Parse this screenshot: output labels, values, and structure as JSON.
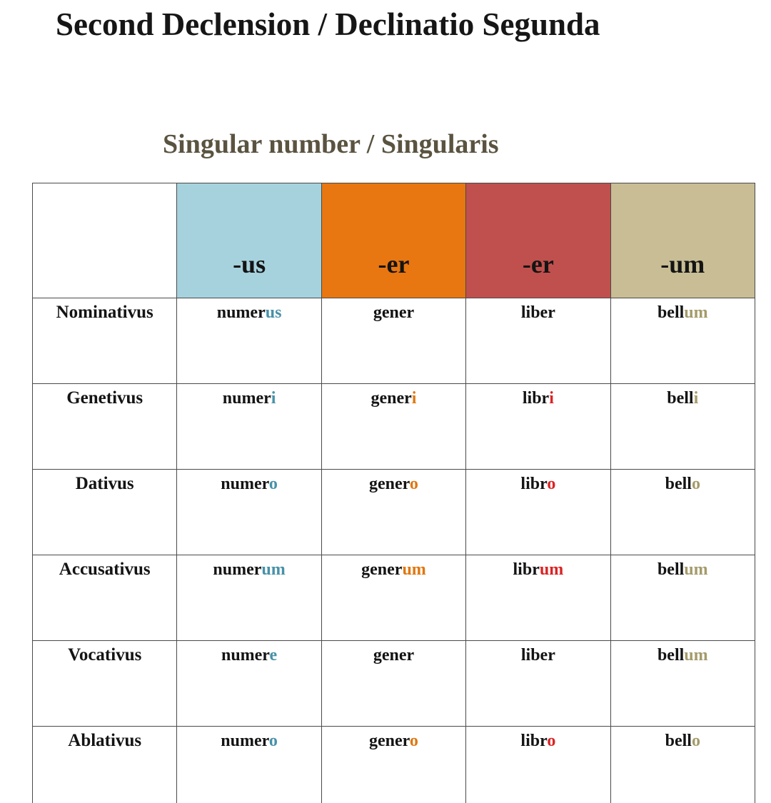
{
  "title": "Second Declension / Declinatio Segunda",
  "subtitle": "Singular number / Singularis",
  "colors": {
    "title_text": "#161616",
    "subtitle_text": "#5a5340",
    "table_border": "#4a4a4a"
  },
  "table": {
    "columns": [
      {
        "header": "",
        "header_bg": "#ffffff",
        "ending_color": "#141414"
      },
      {
        "header": "-us",
        "header_bg": "#a6d2de",
        "ending_color": "#4791a8"
      },
      {
        "header": "-er",
        "header_bg": "#e87711",
        "ending_color": "#e0770f"
      },
      {
        "header": "-er",
        "header_bg": "#c0504d",
        "ending_color": "#da2425"
      },
      {
        "header": "-um",
        "header_bg": "#c8bd94",
        "ending_color": "#a49b6b"
      }
    ],
    "rows": [
      {
        "case": "Nominativus",
        "cells": [
          {
            "stem": "numer",
            "ending": "us"
          },
          {
            "stem": "gener",
            "ending": ""
          },
          {
            "stem": "liber",
            "ending": ""
          },
          {
            "stem": "bell",
            "ending": "um"
          }
        ]
      },
      {
        "case": "Genetivus",
        "cells": [
          {
            "stem": "numer",
            "ending": "i"
          },
          {
            "stem": "gener",
            "ending": "i"
          },
          {
            "stem": "libr",
            "ending": "i"
          },
          {
            "stem": "bell",
            "ending": "i"
          }
        ]
      },
      {
        "case": "Dativus",
        "cells": [
          {
            "stem": "numer",
            "ending": "o"
          },
          {
            "stem": "gener",
            "ending": "o"
          },
          {
            "stem": "libr",
            "ending": "o"
          },
          {
            "stem": "bell",
            "ending": "o"
          }
        ]
      },
      {
        "case": "Accusativus",
        "cells": [
          {
            "stem": "numer",
            "ending": "um"
          },
          {
            "stem": "gener",
            "ending": "um"
          },
          {
            "stem": "libr",
            "ending": "um"
          },
          {
            "stem": "bell",
            "ending": "um"
          }
        ]
      },
      {
        "case": "Vocativus",
        "cells": [
          {
            "stem": "numer",
            "ending": "e"
          },
          {
            "stem": "gener",
            "ending": ""
          },
          {
            "stem": "liber",
            "ending": ""
          },
          {
            "stem": "bell",
            "ending": "um"
          }
        ]
      },
      {
        "case": "Ablativus",
        "cells": [
          {
            "stem": "numer",
            "ending": "o"
          },
          {
            "stem": "gener",
            "ending": "o"
          },
          {
            "stem": "libr",
            "ending": "o"
          },
          {
            "stem": "bell",
            "ending": "o"
          }
        ]
      }
    ]
  }
}
